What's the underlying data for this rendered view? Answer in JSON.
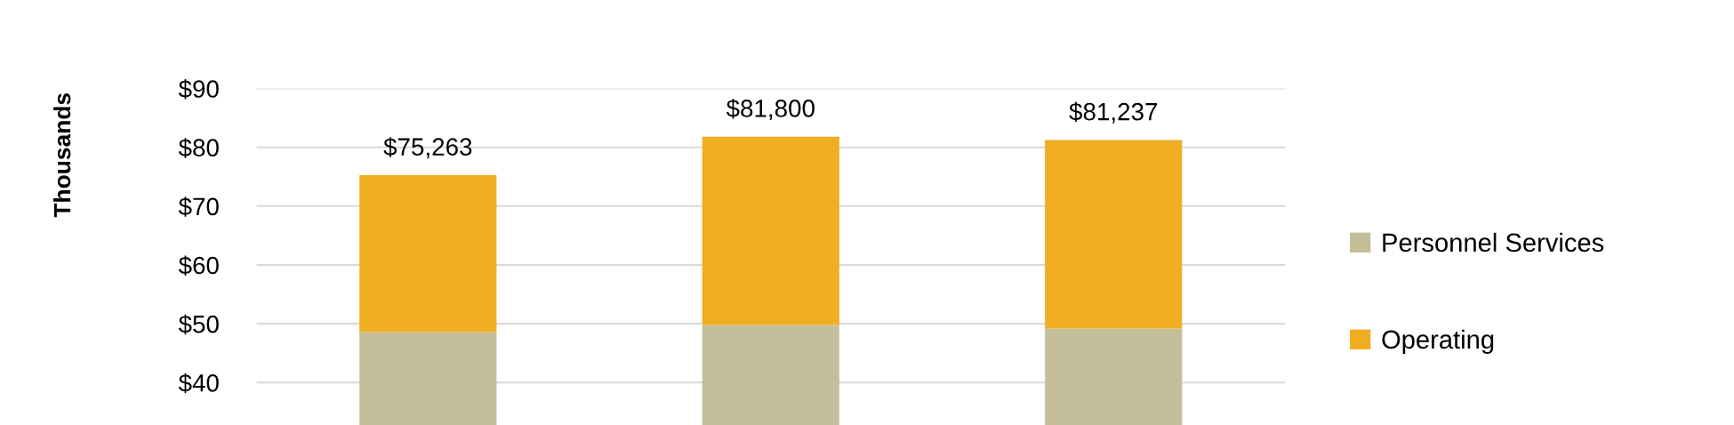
{
  "chart_data": {
    "type": "bar",
    "stacked": true,
    "ylabel": "Thousands",
    "categories": [
      null,
      null,
      null
    ],
    "series": [
      {
        "name": "Personnel Services",
        "color": "#c4bf9a",
        "values": [
          48.6,
          49.8,
          49.2
        ]
      },
      {
        "name": "Operating",
        "color": "#f0ae22",
        "values": [
          26.663,
          32.0,
          32.037
        ]
      }
    ],
    "totals": [
      "$75,263",
      "$81,800",
      "$81,237"
    ],
    "ylim": [
      0,
      90
    ],
    "yticks": [
      {
        "value": 40,
        "label": "$40"
      },
      {
        "value": 50,
        "label": "$50"
      },
      {
        "value": 60,
        "label": "$60"
      },
      {
        "value": 70,
        "label": "$70"
      },
      {
        "value": 80,
        "label": "$80"
      },
      {
        "value": 90,
        "label": "$90"
      }
    ],
    "grid": "y",
    "legend": "right"
  }
}
